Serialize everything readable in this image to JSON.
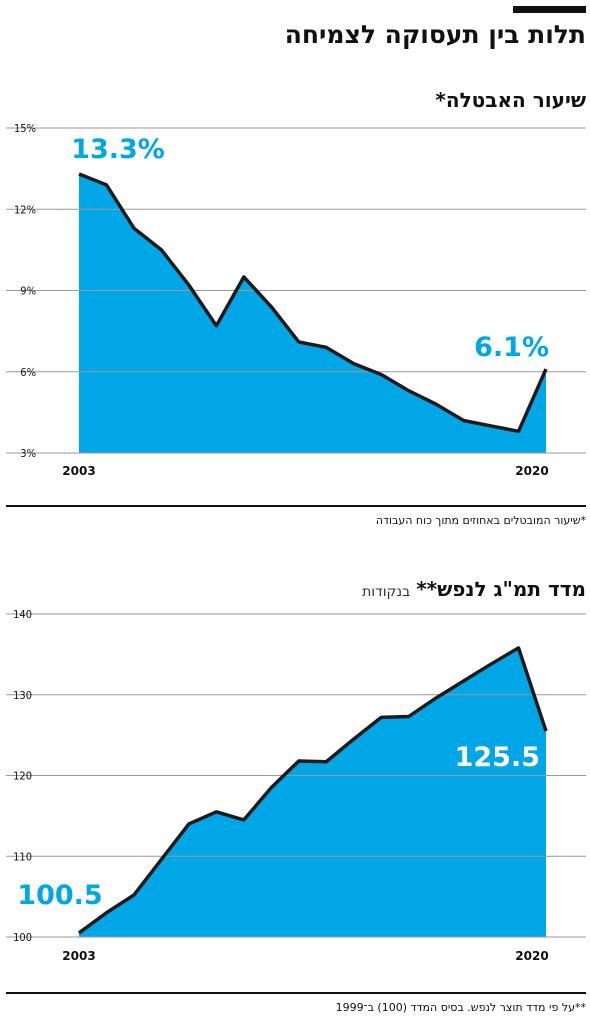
{
  "header": {
    "title": "תלות בין תעסוקה לצמיחה"
  },
  "colors": {
    "fill": "#00a6e6",
    "line": "#1a1a1a",
    "grid": "#9a9a9a",
    "callout": "#00a6e6",
    "callout_white": "#ffffff"
  },
  "chart_data": [
    {
      "type": "area",
      "title": "שיעור האבטלה*",
      "ytick_labels": [
        "15%",
        "12%",
        "9%",
        "6%",
        "3%"
      ],
      "yticks": [
        15,
        12,
        9,
        6,
        3
      ],
      "ylim": [
        3,
        15
      ],
      "xtick_labels": [
        "2003",
        "2020"
      ],
      "x": [
        2003,
        2004,
        2005,
        2006,
        2007,
        2008,
        2009,
        2010,
        2011,
        2012,
        2013,
        2014,
        2015,
        2016,
        2017,
        2018,
        2019,
        2020
      ],
      "values": [
        13.3,
        12.9,
        11.3,
        10.5,
        9.2,
        7.7,
        9.5,
        8.4,
        7.1,
        6.9,
        6.3,
        5.9,
        5.3,
        4.8,
        4.2,
        4.0,
        3.8,
        6.1
      ],
      "callouts": {
        "start": "13.3%",
        "end": "6.1%"
      },
      "footnote": "*שיעור המובטלים באחוזים מתוך כוח העבודה"
    },
    {
      "type": "area",
      "title": "מדד תמ\"ג לנפש**",
      "unit": "בנקודות",
      "ytick_labels": [
        "140",
        "130",
        "120",
        "110",
        "100"
      ],
      "yticks": [
        140,
        130,
        120,
        110,
        100
      ],
      "ylim": [
        100,
        140
      ],
      "xtick_labels": [
        "2003",
        "2020"
      ],
      "x": [
        2003,
        2004,
        2005,
        2006,
        2007,
        2008,
        2009,
        2010,
        2011,
        2012,
        2013,
        2014,
        2015,
        2016,
        2017,
        2018,
        2019,
        2020
      ],
      "values": [
        100.5,
        103.0,
        105.2,
        109.6,
        114.0,
        115.5,
        114.5,
        118.5,
        121.8,
        121.7,
        124.5,
        127.2,
        127.3,
        129.6,
        131.7,
        133.8,
        135.8,
        125.5
      ],
      "callouts": {
        "start": "100.5",
        "end": "125.5"
      },
      "footnote": "**על פי מדד תוצר לנפש. בסיס המדד (100) ב־1999"
    }
  ]
}
